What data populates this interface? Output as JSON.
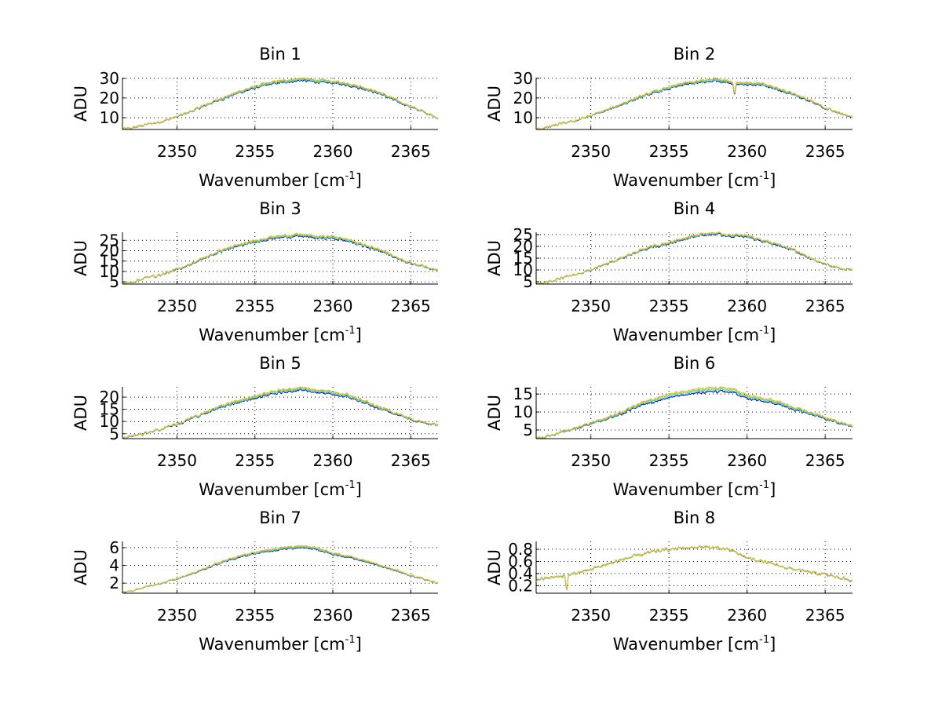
{
  "chart_data": {
    "type": "line",
    "layout": "4x2 subplots",
    "xlabel": "Wavenumber [cm",
    "xlabel_superscript": "-1",
    "xlabel_suffix": "]",
    "ylabel": "ADU",
    "xlim": [
      2346.5,
      2366.75
    ],
    "xticks": [
      2350,
      2355,
      2360,
      2365
    ],
    "xtick_labels": [
      "2350",
      "2355",
      "2360",
      "2365"
    ],
    "grid": true,
    "series_colors": [
      "#00008f",
      "#40e0e0",
      "#88c860",
      "#e8b820"
    ],
    "panels": [
      {
        "title": "Bin 1",
        "ylim": [
          4,
          30.3
        ],
        "yticks": [
          10,
          20,
          30
        ],
        "ytick_labels": [
          "10",
          "20",
          "30"
        ],
        "envelope": [
          [
            2346.5,
            4.2
          ],
          [
            2347,
            4.6
          ],
          [
            2348,
            6.5
          ],
          [
            2349,
            8
          ],
          [
            2350,
            10.5
          ],
          [
            2351,
            13.5
          ],
          [
            2352,
            17
          ],
          [
            2353,
            20
          ],
          [
            2354,
            23
          ],
          [
            2355,
            25.5
          ],
          [
            2356,
            27.5
          ],
          [
            2357,
            28.6
          ],
          [
            2358,
            29.5
          ],
          [
            2359,
            28.6
          ],
          [
            2360,
            28
          ],
          [
            2361,
            27
          ],
          [
            2362,
            25
          ],
          [
            2363,
            22.5
          ],
          [
            2364,
            19
          ],
          [
            2365,
            15.5
          ],
          [
            2366,
            12.5
          ],
          [
            2366.75,
            10
          ]
        ],
        "noise": 0.8,
        "spread": 0.15,
        "dips": []
      },
      {
        "title": "Bin 2",
        "ylim": [
          4,
          30.3
        ],
        "yticks": [
          10,
          20,
          30
        ],
        "ytick_labels": [
          "10",
          "20",
          "30"
        ],
        "envelope": [
          [
            2346.5,
            4.2
          ],
          [
            2347,
            4.6
          ],
          [
            2348,
            6.8
          ],
          [
            2349,
            8.5
          ],
          [
            2350,
            11
          ],
          [
            2351,
            13.8
          ],
          [
            2352,
            17
          ],
          [
            2353,
            20
          ],
          [
            2354,
            22.8
          ],
          [
            2355,
            25
          ],
          [
            2356,
            27.3
          ],
          [
            2357,
            28.2
          ],
          [
            2358,
            29.4
          ],
          [
            2359,
            28
          ],
          [
            2360,
            27.3
          ],
          [
            2361,
            26.8
          ],
          [
            2362,
            24.5
          ],
          [
            2363,
            22
          ],
          [
            2364,
            18.5
          ],
          [
            2365,
            15
          ],
          [
            2366,
            12
          ],
          [
            2366.75,
            10.3
          ]
        ],
        "noise": 0.8,
        "spread": 0.15,
        "dips": [
          [
            2359.2,
            6.5
          ]
        ]
      },
      {
        "title": "Bin 3",
        "ylim": [
          3.9,
          28.9
        ],
        "yticks": [
          5,
          10,
          15,
          20,
          25
        ],
        "ytick_labels": [
          "5",
          "10",
          "15",
          "20",
          "25"
        ],
        "envelope": [
          [
            2346.5,
            4.3
          ],
          [
            2347,
            4.6
          ],
          [
            2348,
            7
          ],
          [
            2349,
            8.5
          ],
          [
            2350,
            11
          ],
          [
            2351,
            14
          ],
          [
            2352,
            17.3
          ],
          [
            2353,
            20.5
          ],
          [
            2354,
            22.5
          ],
          [
            2355,
            24.5
          ],
          [
            2356,
            26.3
          ],
          [
            2357,
            27
          ],
          [
            2358,
            27.5
          ],
          [
            2359,
            26.5
          ],
          [
            2360,
            26.5
          ],
          [
            2361,
            25
          ],
          [
            2362,
            22.5
          ],
          [
            2363,
            20.5
          ],
          [
            2364,
            17
          ],
          [
            2365,
            14
          ],
          [
            2366,
            12.3
          ],
          [
            2366.75,
            10.5
          ]
        ],
        "noise": 0.8,
        "spread": 0.15,
        "dips": []
      },
      {
        "title": "Bin 4",
        "ylim": [
          4,
          26
        ],
        "yticks": [
          5,
          10,
          15,
          20,
          25
        ],
        "ytick_labels": [
          "5",
          "10",
          "15",
          "20",
          "25"
        ],
        "envelope": [
          [
            2346.5,
            4.2
          ],
          [
            2347,
            4.5
          ],
          [
            2348,
            6.3
          ],
          [
            2349,
            8
          ],
          [
            2350,
            10
          ],
          [
            2351,
            12.5
          ],
          [
            2352,
            15
          ],
          [
            2353,
            18
          ],
          [
            2354,
            20
          ],
          [
            2355,
            21.5
          ],
          [
            2356,
            23.5
          ],
          [
            2357,
            25
          ],
          [
            2358,
            25.5
          ],
          [
            2359,
            24.5
          ],
          [
            2360,
            24.5
          ],
          [
            2361,
            22.5
          ],
          [
            2362,
            20.5
          ],
          [
            2363,
            18.5
          ],
          [
            2364,
            15
          ],
          [
            2365,
            12.5
          ],
          [
            2366,
            10.6
          ],
          [
            2366.75,
            10
          ]
        ],
        "noise": 0.7,
        "spread": 0.12,
        "dips": []
      },
      {
        "title": "Bin 5",
        "ylim": [
          3,
          24.2
        ],
        "yticks": [
          5,
          10,
          15,
          20
        ],
        "ytick_labels": [
          "5",
          "10",
          "15",
          "20"
        ],
        "envelope": [
          [
            2346.5,
            3.4
          ],
          [
            2347,
            3.8
          ],
          [
            2348,
            5.5
          ],
          [
            2349,
            7
          ],
          [
            2350,
            9
          ],
          [
            2351,
            11.5
          ],
          [
            2352,
            14
          ],
          [
            2353,
            16.5
          ],
          [
            2354,
            18.3
          ],
          [
            2355,
            20
          ],
          [
            2356,
            21.5
          ],
          [
            2357,
            22.8
          ],
          [
            2358,
            23.5
          ],
          [
            2359,
            22.5
          ],
          [
            2360,
            21.5
          ],
          [
            2361,
            20.5
          ],
          [
            2362,
            18
          ],
          [
            2363,
            15.5
          ],
          [
            2364,
            13.5
          ],
          [
            2365,
            11
          ],
          [
            2366,
            9.5
          ],
          [
            2366.75,
            8.5
          ]
        ],
        "noise": 0.7,
        "spread": 0.2,
        "dips": []
      },
      {
        "title": "Bin 6",
        "ylim": [
          2.6,
          17
        ],
        "yticks": [
          5,
          10,
          15
        ],
        "ytick_labels": [
          "5",
          "10",
          "15"
        ],
        "envelope": [
          [
            2346.5,
            2.8
          ],
          [
            2347,
            3
          ],
          [
            2348,
            4.2
          ],
          [
            2349,
            5.5
          ],
          [
            2350,
            6.8
          ],
          [
            2351,
            8.2
          ],
          [
            2352,
            9.8
          ],
          [
            2353,
            12
          ],
          [
            2354,
            13.2
          ],
          [
            2355,
            14.5
          ],
          [
            2356,
            15.2
          ],
          [
            2357,
            16
          ],
          [
            2358,
            16.4
          ],
          [
            2359,
            16
          ],
          [
            2360,
            14.2
          ],
          [
            2361,
            13.6
          ],
          [
            2362,
            12.5
          ],
          [
            2363,
            11
          ],
          [
            2364,
            9.8
          ],
          [
            2365,
            8.3
          ],
          [
            2366,
            7
          ],
          [
            2366.75,
            6
          ]
        ],
        "noise": 0.45,
        "spread": 0.28,
        "dips": []
      },
      {
        "title": "Bin 7",
        "ylim": [
          0.87,
          6.7
        ],
        "yticks": [
          2,
          4,
          6
        ],
        "ytick_labels": [
          "2",
          "4",
          "6"
        ],
        "envelope": [
          [
            2346.5,
            0.95
          ],
          [
            2347,
            1.1
          ],
          [
            2348,
            1.6
          ],
          [
            2349,
            2
          ],
          [
            2350,
            2.5
          ],
          [
            2351,
            3.1
          ],
          [
            2352,
            3.8
          ],
          [
            2353,
            4.5
          ],
          [
            2354,
            5
          ],
          [
            2355,
            5.4
          ],
          [
            2356,
            5.7
          ],
          [
            2357,
            5.95
          ],
          [
            2358,
            6.1
          ],
          [
            2359,
            5.9
          ],
          [
            2360,
            5.3
          ],
          [
            2361,
            5
          ],
          [
            2362,
            4.5
          ],
          [
            2363,
            4
          ],
          [
            2364,
            3.5
          ],
          [
            2365,
            2.9
          ],
          [
            2366,
            2.4
          ],
          [
            2366.75,
            2
          ]
        ],
        "noise": 0.12,
        "spread": 0.14,
        "dips": []
      },
      {
        "title": "Bin 8",
        "ylim": [
          0.075,
          0.93
        ],
        "yticks": [
          0.2,
          0.4,
          0.6,
          0.8
        ],
        "ytick_labels": [
          "0.2",
          "0.4",
          "0.6",
          "0.8"
        ],
        "envelope": [
          [
            2346.5,
            0.3
          ],
          [
            2347,
            0.32
          ],
          [
            2348,
            0.35
          ],
          [
            2349,
            0.4
          ],
          [
            2350,
            0.47
          ],
          [
            2351,
            0.55
          ],
          [
            2352,
            0.63
          ],
          [
            2353,
            0.7
          ],
          [
            2354,
            0.76
          ],
          [
            2355,
            0.8
          ],
          [
            2356,
            0.82
          ],
          [
            2357,
            0.84
          ],
          [
            2358,
            0.83
          ],
          [
            2359,
            0.78
          ],
          [
            2360,
            0.66
          ],
          [
            2361,
            0.6
          ],
          [
            2362,
            0.53
          ],
          [
            2363,
            0.47
          ],
          [
            2364,
            0.42
          ],
          [
            2365,
            0.38
          ],
          [
            2366,
            0.33
          ],
          [
            2366.75,
            0.28
          ]
        ],
        "noise": 0.035,
        "spread": 0.025,
        "dips": [
          [
            2348.45,
            0.25
          ]
        ]
      }
    ]
  }
}
